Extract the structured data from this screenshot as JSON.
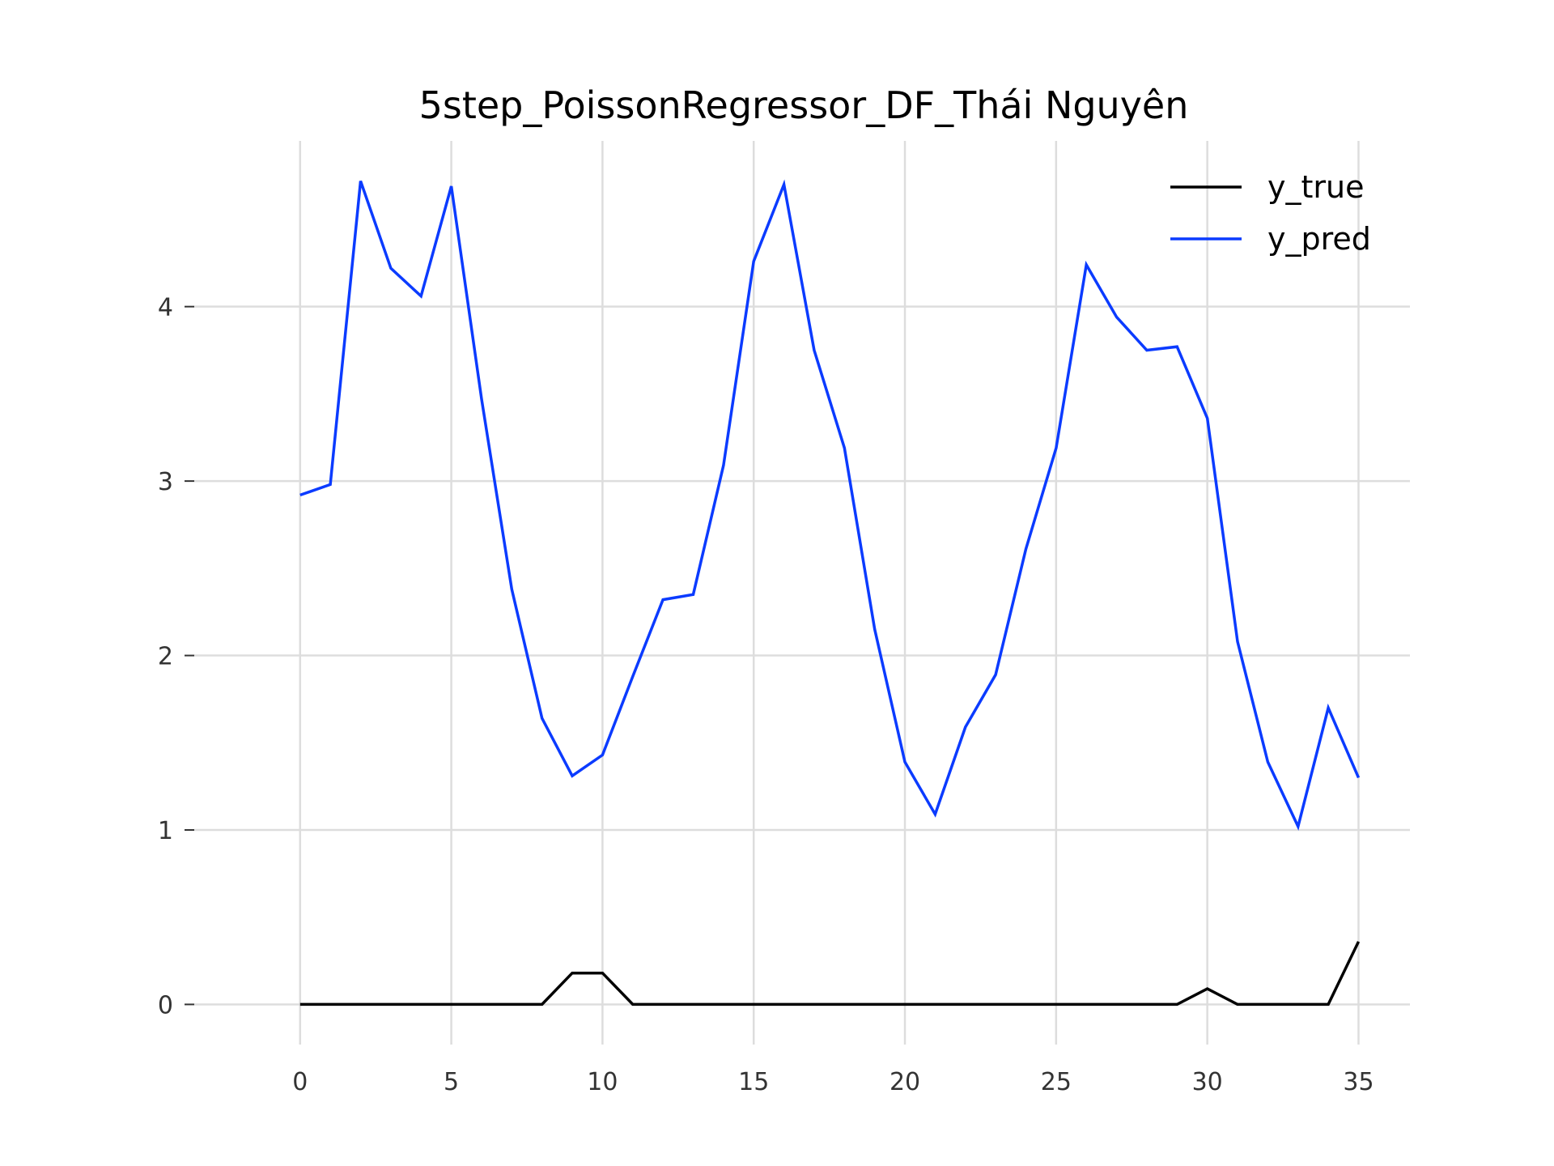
{
  "chart_data": {
    "type": "line",
    "title": "5step_PoissonRegressor_DF_Thái Nguyên",
    "xlabel": "",
    "ylabel": "",
    "xlim": [
      -3.5,
      36.7
    ],
    "ylim": [
      -0.23,
      4.95
    ],
    "x_ticks": [
      0,
      5,
      10,
      15,
      20,
      25,
      30,
      35
    ],
    "x_tick_labels": [
      "0",
      "5",
      "10",
      "15",
      "20",
      "25",
      "30",
      "35"
    ],
    "y_ticks": [
      0,
      1,
      2,
      3,
      4
    ],
    "y_tick_labels": [
      "0",
      "1",
      "2",
      "3",
      "4"
    ],
    "grid": true,
    "legend_position": "top-right",
    "x": [
      0,
      1,
      2,
      3,
      4,
      5,
      6,
      7,
      8,
      9,
      10,
      11,
      12,
      13,
      14,
      15,
      16,
      17,
      18,
      19,
      20,
      21,
      22,
      23,
      24,
      25,
      26,
      27,
      28,
      29,
      30,
      31,
      32,
      33,
      34,
      35
    ],
    "series": [
      {
        "name": "y_true",
        "color": "#000000",
        "values": [
          0,
          0,
          0,
          0,
          0,
          0,
          0,
          0,
          0,
          0.18,
          0.18,
          0,
          0,
          0,
          0,
          0,
          0,
          0,
          0,
          0,
          0,
          0,
          0,
          0,
          0,
          0,
          0,
          0,
          0,
          0,
          0.09,
          0,
          0,
          0,
          0,
          0.36
        ]
      },
      {
        "name": "y_pred",
        "color": "#0b3bff",
        "values": [
          2.92,
          2.98,
          4.72,
          4.22,
          4.06,
          4.69,
          3.47,
          2.38,
          1.64,
          1.31,
          1.43,
          1.88,
          2.32,
          2.35,
          3.09,
          4.26,
          4.7,
          3.75,
          3.19,
          2.15,
          1.39,
          1.09,
          1.59,
          1.89,
          2.61,
          3.19,
          4.24,
          3.94,
          3.75,
          3.77,
          3.36,
          2.08,
          1.39,
          1.02,
          1.7,
          1.3
        ]
      }
    ]
  }
}
